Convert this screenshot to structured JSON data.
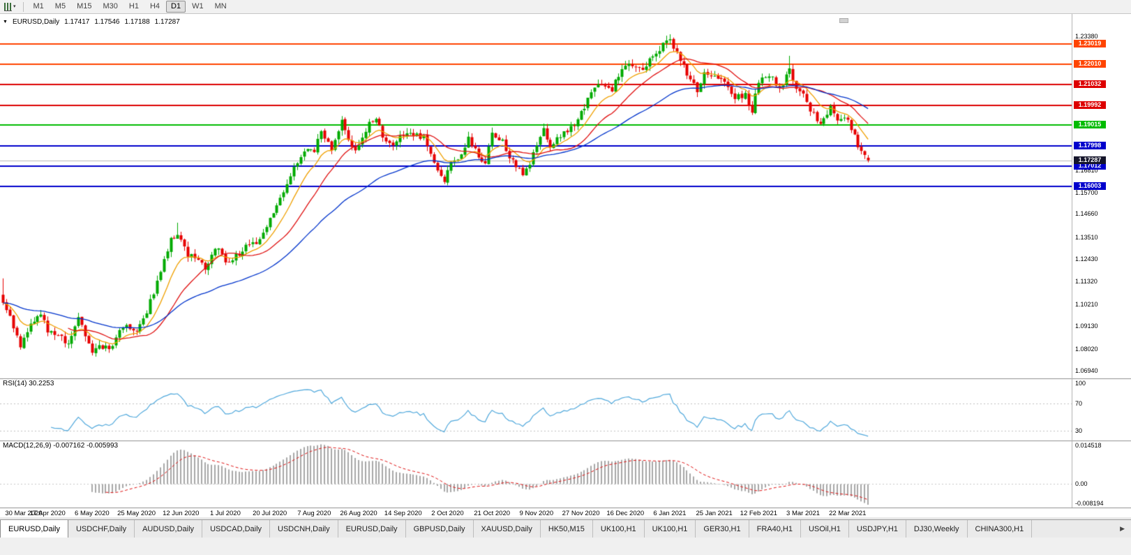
{
  "toolbar": {
    "timeframes": [
      {
        "label": "M1",
        "active": false
      },
      {
        "label": "M5",
        "active": false
      },
      {
        "label": "M15",
        "active": false
      },
      {
        "label": "M30",
        "active": false
      },
      {
        "label": "H1",
        "active": false
      },
      {
        "label": "H4",
        "active": false
      },
      {
        "label": "D1",
        "active": true
      },
      {
        "label": "W1",
        "active": false
      },
      {
        "label": "MN",
        "active": false
      }
    ]
  },
  "chart": {
    "symbol_label": "EURUSD,Daily",
    "open": "1.17417",
    "high": "1.17546",
    "low": "1.17188",
    "close": "1.17287",
    "rsi_label": "RSI(14) 30.2253",
    "macd_label": "MACD(12,26,9) -0.007162 -0.005993"
  },
  "chart_data": {
    "type": "candlestick",
    "symbol": "EURUSD",
    "timeframe": "Daily",
    "title": "EURUSD,Daily 1.17417 1.17546 1.17188 1.17287",
    "bars_total": 254,
    "price_range": [
      1.0663,
      1.2442
    ],
    "x_labels": [
      "30 Mar 2020",
      "17 Apr 2020",
      "6 May 2020",
      "25 May 2020",
      "12 Jun 2020",
      "1 Jul 2020",
      "20 Jul 2020",
      "7 Aug 2020",
      "26 Aug 2020",
      "14 Sep 2020",
      "2 Oct 2020",
      "21 Oct 2020",
      "9 Nov 2020",
      "27 Nov 2020",
      "16 Dec 2020",
      "6 Jan 2021",
      "25 Jan 2021",
      "12 Feb 2021",
      "3 Mar 2021",
      "22 Mar 2021"
    ],
    "bars_per_label": 13,
    "y_ticks": [
      "1.23380",
      "1.16810",
      "1.15700",
      "1.14660",
      "1.13510",
      "1.12430",
      "1.11320",
      "1.10210",
      "1.09130",
      "1.08020",
      "1.06940"
    ],
    "hlines": [
      {
        "price": 1.23019,
        "label": "1.23019",
        "color": "#FF4400"
      },
      {
        "price": 1.2201,
        "label": "1.22010",
        "color": "#FF4400"
      },
      {
        "price": 1.21032,
        "label": "1.21032",
        "color": "#DD0000"
      },
      {
        "price": 1.19992,
        "label": "1.19992",
        "color": "#DD0000"
      },
      {
        "price": 1.19015,
        "label": "1.19015",
        "color": "#00BB00"
      },
      {
        "price": 1.17998,
        "label": "1.17998",
        "color": "#0000CC"
      },
      {
        "price": 1.17012,
        "label": "1.17012",
        "color": "#0000CC"
      },
      {
        "price": 1.16003,
        "label": "1.16003",
        "color": "#0000CC"
      }
    ],
    "current_price": {
      "price": 1.17287,
      "label": "1.17287",
      "line_color": "#B8B8B8",
      "tag_color": "#15152B"
    },
    "candle_colors": {
      "up": "#00AA00",
      "down": "#E60000"
    },
    "moving_averages": [
      {
        "type": "ema",
        "period": 10,
        "color": "#F0A000"
      },
      {
        "type": "sma",
        "period": 20,
        "color": "#E01010"
      },
      {
        "type": "ema",
        "period": 50,
        "color": "#0033CC"
      }
    ],
    "anchors": [
      [
        0,
        1.104
      ],
      [
        2,
        1.096
      ],
      [
        5,
        1.08
      ],
      [
        8,
        1.093
      ],
      [
        11,
        1.0985
      ],
      [
        13,
        1.0875
      ],
      [
        16,
        1.087
      ],
      [
        19,
        1.0823
      ],
      [
        22,
        1.0955
      ],
      [
        26,
        1.0795
      ],
      [
        29,
        1.0815
      ],
      [
        32,
        1.0805
      ],
      [
        35,
        1.0917
      ],
      [
        39,
        1.09
      ],
      [
        42,
        1.0983
      ],
      [
        45,
        1.1134
      ],
      [
        49,
        1.134
      ],
      [
        51,
        1.1375
      ],
      [
        54,
        1.126
      ],
      [
        57,
        1.1245
      ],
      [
        59,
        1.1177
      ],
      [
        62,
        1.1308
      ],
      [
        65,
        1.1235
      ],
      [
        68,
        1.126
      ],
      [
        71,
        1.13
      ],
      [
        74,
        1.1325
      ],
      [
        78,
        1.1445
      ],
      [
        80,
        1.152
      ],
      [
        82,
        1.1571
      ],
      [
        85,
        1.17
      ],
      [
        88,
        1.1778
      ],
      [
        91,
        1.1785
      ],
      [
        93,
        1.1876
      ],
      [
        96,
        1.179
      ],
      [
        99,
        1.193
      ],
      [
        102,
        1.179
      ],
      [
        104,
        1.179
      ],
      [
        107,
        1.191
      ],
      [
        109,
        1.1935
      ],
      [
        111,
        1.184
      ],
      [
        114,
        1.1815
      ],
      [
        117,
        1.1845
      ],
      [
        120,
        1.186
      ],
      [
        123,
        1.184
      ],
      [
        125,
        1.176
      ],
      [
        127,
        1.168
      ],
      [
        129,
        1.163
      ],
      [
        131,
        1.1715
      ],
      [
        133,
        1.174
      ],
      [
        136,
        1.183
      ],
      [
        139,
        1.1745
      ],
      [
        141,
        1.1715
      ],
      [
        143,
        1.186
      ],
      [
        146,
        1.183
      ],
      [
        148,
        1.175
      ],
      [
        150,
        1.1695
      ],
      [
        152,
        1.166
      ],
      [
        154,
        1.172
      ],
      [
        156,
        1.1815
      ],
      [
        158,
        1.189
      ],
      [
        160,
        1.178
      ],
      [
        163,
        1.1855
      ],
      [
        166,
        1.189
      ],
      [
        169,
        1.1962
      ],
      [
        172,
        1.207
      ],
      [
        175,
        1.2115
      ],
      [
        178,
        1.208
      ],
      [
        180,
        1.2145
      ],
      [
        182,
        1.22
      ],
      [
        185,
        1.2185
      ],
      [
        188,
        1.2185
      ],
      [
        190,
        1.225
      ],
      [
        193,
        1.2295
      ],
      [
        195,
        1.2325
      ],
      [
        197,
        1.225
      ],
      [
        200,
        1.2155
      ],
      [
        203,
        1.2075
      ],
      [
        205,
        1.217
      ],
      [
        208,
        1.214
      ],
      [
        211,
        1.2115
      ],
      [
        214,
        1.2035
      ],
      [
        217,
        1.2045
      ],
      [
        219,
        1.197
      ],
      [
        221,
        1.212
      ],
      [
        224,
        1.215
      ],
      [
        227,
        1.208
      ],
      [
        230,
        1.218
      ],
      [
        232,
        1.207
      ],
      [
        234,
        1.2065
      ],
      [
        236,
        1.1965
      ],
      [
        239,
        1.192
      ],
      [
        242,
        1.1985
      ],
      [
        245,
        1.1917
      ],
      [
        247,
        1.1935
      ],
      [
        248,
        1.189
      ],
      [
        249,
        1.185
      ],
      [
        250,
        1.18
      ],
      [
        251,
        1.1764
      ],
      [
        252,
        1.1766
      ],
      [
        253,
        1.17287
      ]
    ],
    "key_bars": [
      {
        "i": 0,
        "high": 1.1148
      },
      {
        "i": 51,
        "high": 1.1422
      },
      {
        "i": 129,
        "low": 1.1612
      },
      {
        "i": 152,
        "low": 1.165
      },
      {
        "i": 195,
        "high": 1.2349
      },
      {
        "i": 219,
        "low": 1.1952
      },
      {
        "i": 230,
        "high": 1.2243
      },
      {
        "i": 253,
        "open": 1.17417,
        "high": 1.17546,
        "low": 1.17188,
        "close": 1.17287
      }
    ],
    "rsi": {
      "period": 14,
      "value": 30.2253,
      "levels": [
        70,
        30
      ],
      "scale_labels": [
        "100",
        "70",
        "30"
      ],
      "scale_values": [
        100,
        70,
        30
      ],
      "color": "#4FA8DC"
    },
    "macd": {
      "fast": 12,
      "slow": 26,
      "signal_period": 9,
      "value": -0.007162,
      "signal_value": -0.005993,
      "scale_labels": [
        "0.014518",
        "0.00",
        "-0.008194"
      ],
      "range": [
        -0.008194,
        0.014518
      ],
      "hist_color": "#A8A8A8",
      "signal_color": "#E01010"
    }
  },
  "tabbar": {
    "scroll_right_icon": "▶",
    "tabs": [
      {
        "label": "EURUSD,Daily",
        "active": true
      },
      {
        "label": "USDCHF,Daily",
        "active": false
      },
      {
        "label": "AUDUSD,Daily",
        "active": false
      },
      {
        "label": "USDCAD,Daily",
        "active": false
      },
      {
        "label": "USDCNH,Daily",
        "active": false
      },
      {
        "label": "EURUSD,Daily",
        "active": false
      },
      {
        "label": "GBPUSD,Daily",
        "active": false
      },
      {
        "label": "XAUUSD,Daily",
        "active": false
      },
      {
        "label": "HK50,M15",
        "active": false
      },
      {
        "label": "UK100,H1",
        "active": false
      },
      {
        "label": "UK100,H1",
        "active": false
      },
      {
        "label": "GER30,H1",
        "active": false
      },
      {
        "label": "FRA40,H1",
        "active": false
      },
      {
        "label": "USOil,H1",
        "active": false
      },
      {
        "label": "USDJPY,H1",
        "active": false
      },
      {
        "label": "DJ30,Weekly",
        "active": false
      },
      {
        "label": "CHINA300,H1",
        "active": false
      }
    ]
  }
}
